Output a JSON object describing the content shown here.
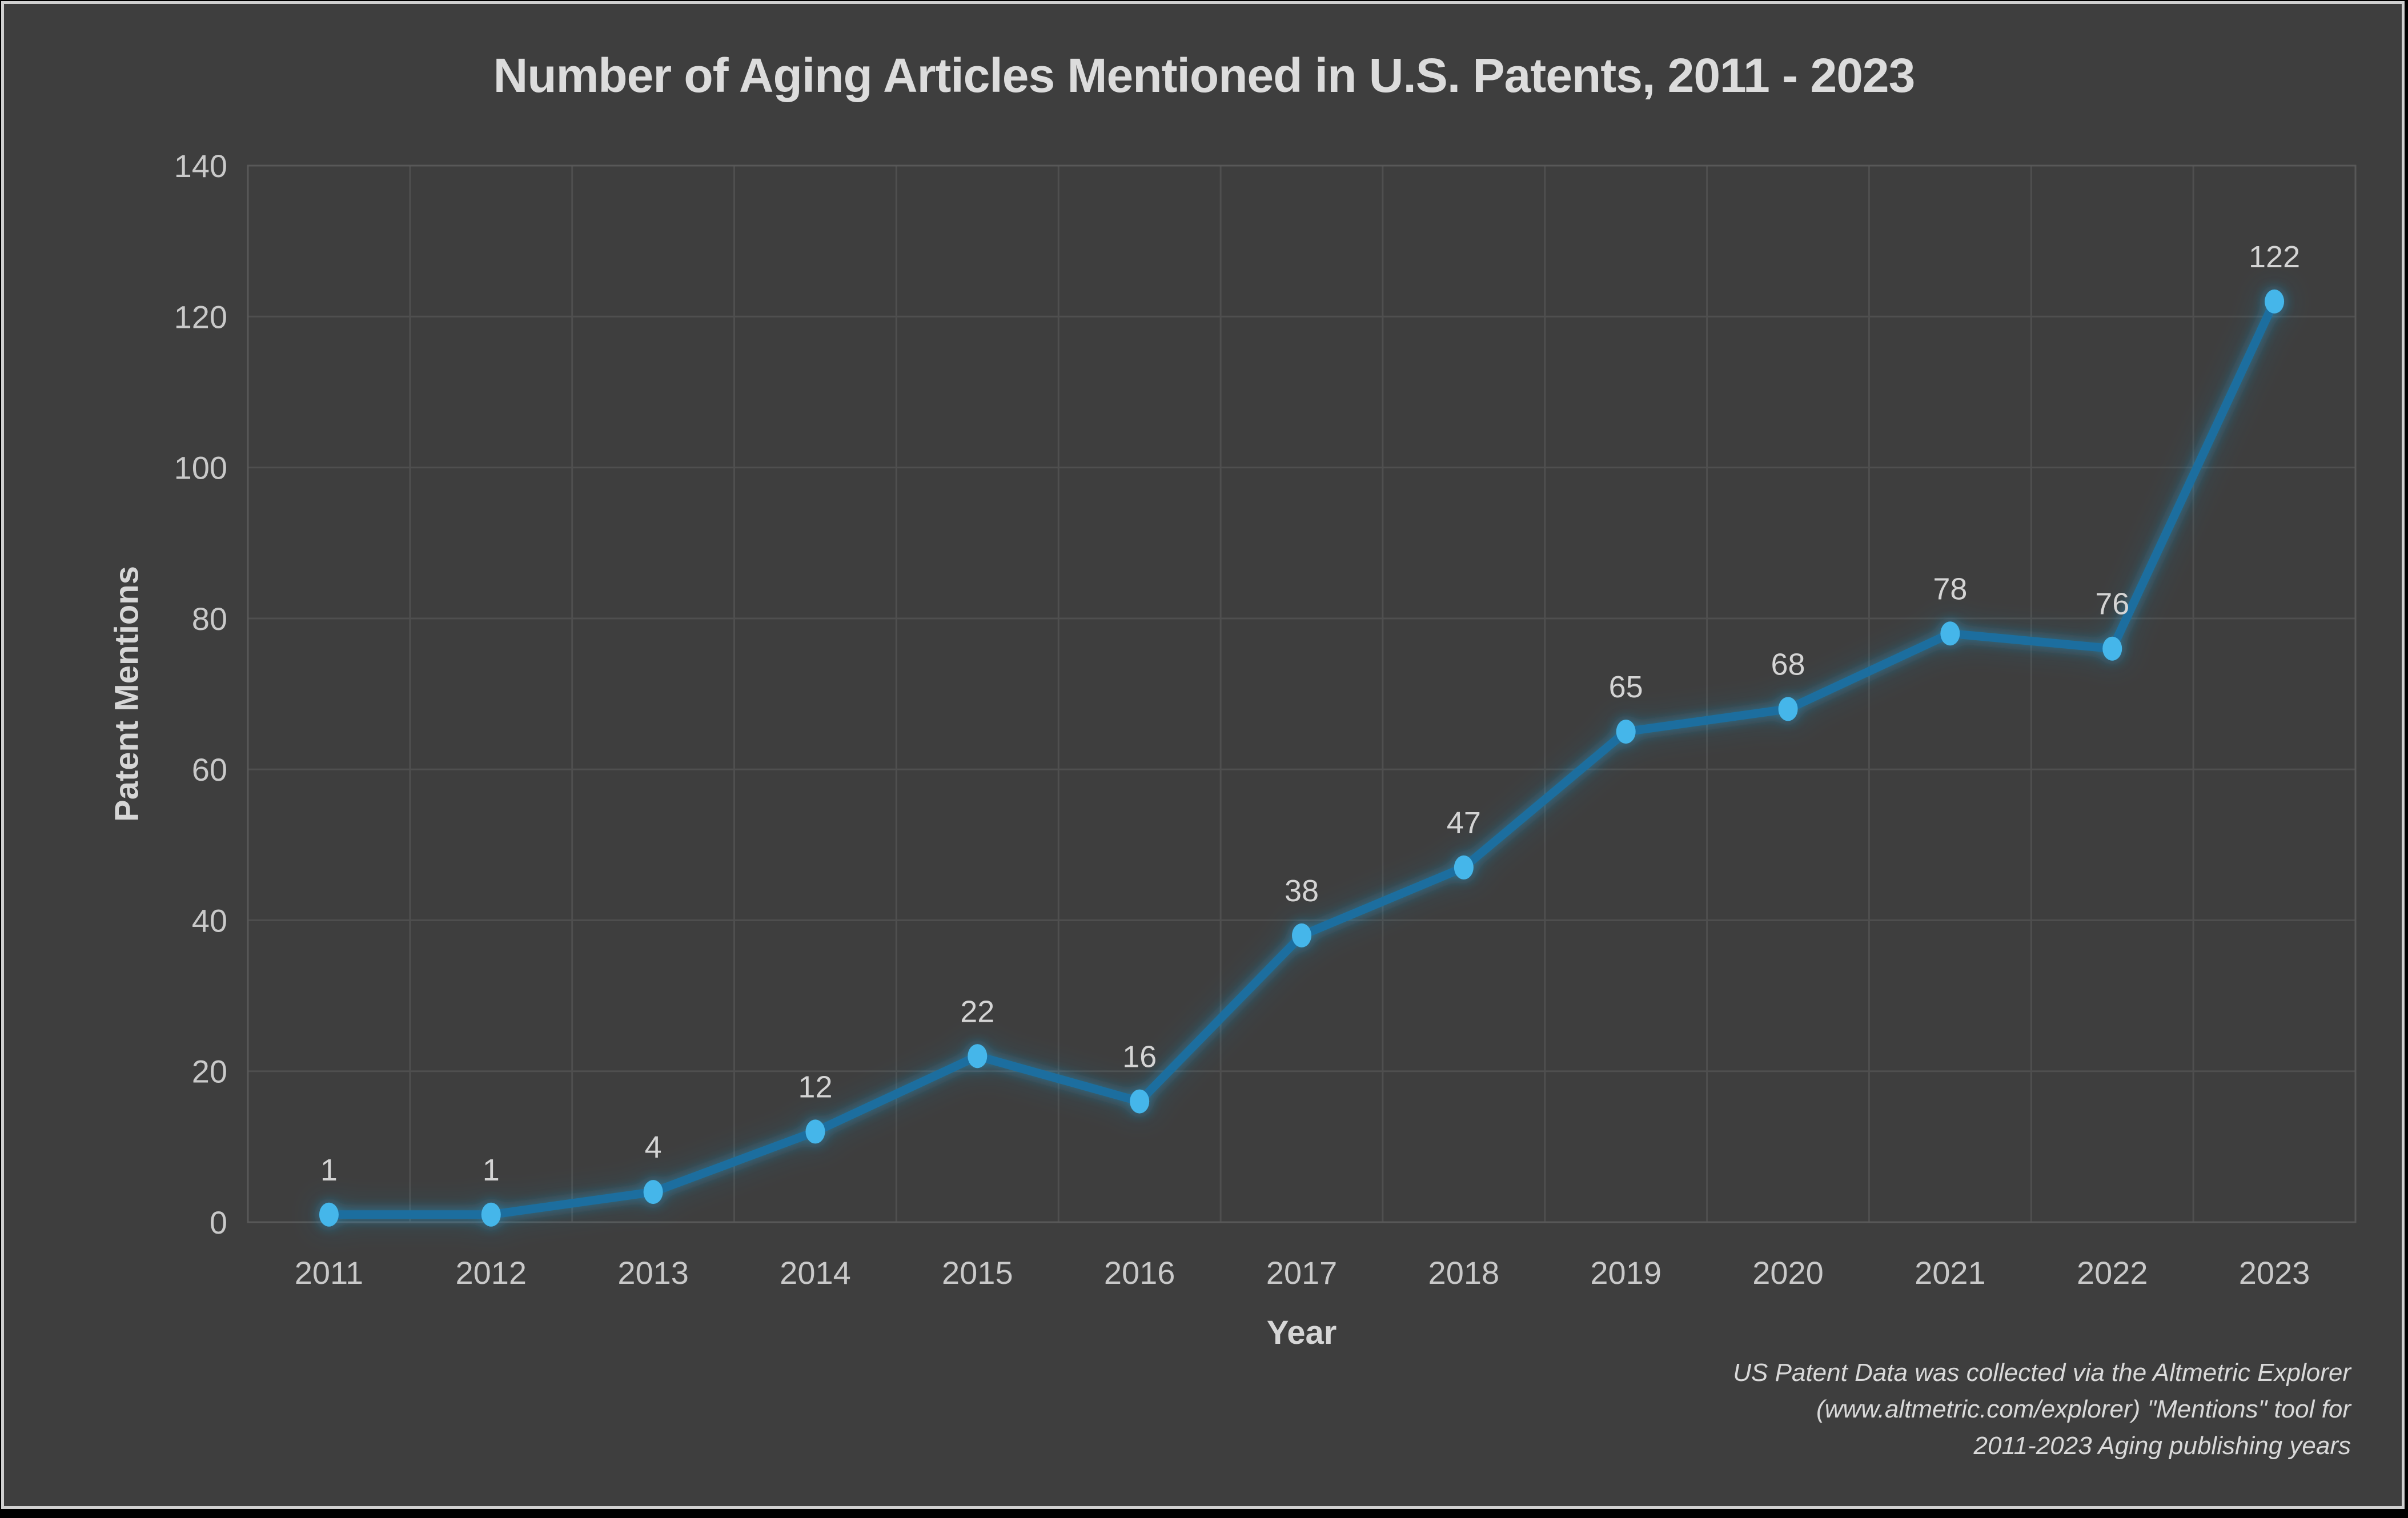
{
  "chart_data": {
    "type": "line",
    "title": "Number of Aging Articles Mentioned in U.S. Patents, 2011 - 2023",
    "xlabel": "Year",
    "ylabel": "Patent Mentions",
    "categories": [
      "2011",
      "2012",
      "2013",
      "2014",
      "2015",
      "2016",
      "2017",
      "2018",
      "2019",
      "2020",
      "2021",
      "2022",
      "2023"
    ],
    "values": [
      1,
      1,
      4,
      12,
      22,
      16,
      38,
      47,
      65,
      68,
      78,
      76,
      122
    ],
    "data_labels": [
      1,
      1,
      4,
      12,
      22,
      16,
      38,
      47,
      65,
      68,
      78,
      76,
      122
    ],
    "ylim": [
      0,
      140
    ],
    "yticks": [
      0,
      20,
      40,
      60,
      80,
      100,
      120,
      140
    ],
    "grid": true,
    "legend_position": "none",
    "colors": {
      "outer_background": "#000000",
      "background": "#3e3e3e",
      "frame_border": "#d0d0d0",
      "gridline": "#4f4f4f",
      "plot_border": "#585858",
      "line": "#1e6e9f",
      "marker": "#45b6ea",
      "glow": "#2ba0d8",
      "text": "#d6d6d6",
      "tick_text": "#c9c9c9"
    }
  },
  "footnote": {
    "lines": [
      "US Patent Data was collected via the Altmetric Explorer",
      "(www.altmetric.com/explorer) \"Mentions\" tool for",
      "2011-2023 Aging publishing years"
    ]
  }
}
